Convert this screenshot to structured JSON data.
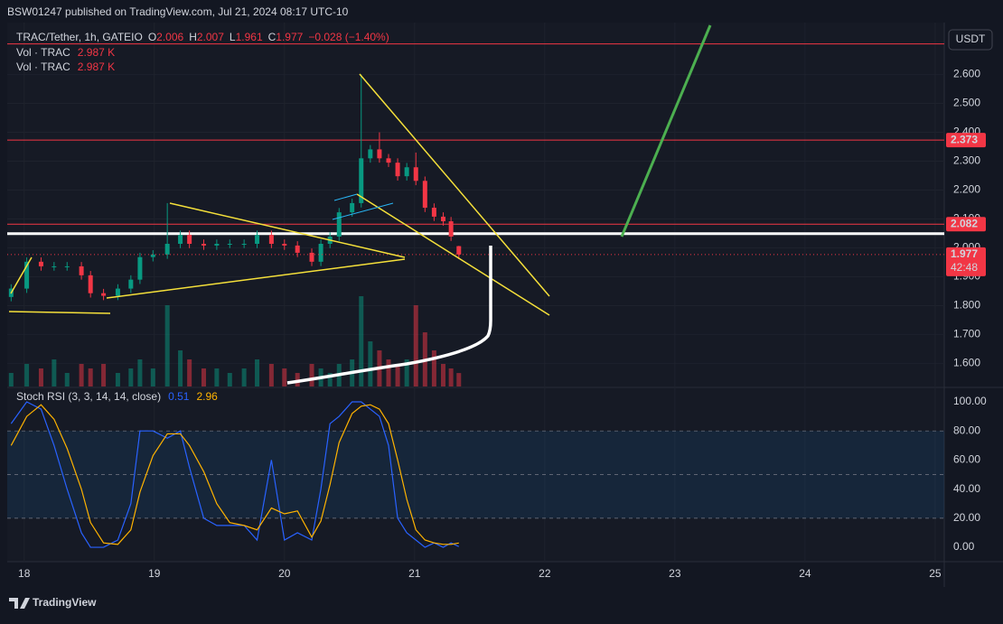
{
  "header": {
    "title": "BSW01247 published on TradingView.com, Jul 21, 2024 08:17 UTC-10"
  },
  "chart_data": [
    {
      "type": "candlestick",
      "symbol": "TRAC/Tether, 1h, GATEIO",
      "ohlc_prefixes": [
        "O",
        "H",
        "L",
        "C"
      ],
      "change": "−0.028 (−1.40%)",
      "volume_labels": [
        "Vol · TRAC",
        "Vol · TRAC"
      ],
      "volume_value_label": "2.987 K",
      "currency": "USDT",
      "countdown": "42:48",
      "x": [
        17.9,
        18.02,
        18.13,
        18.23,
        18.33,
        18.44,
        18.51,
        18.61,
        18.72,
        18.82,
        18.89,
        18.99,
        19.1,
        19.2,
        19.27,
        19.38,
        19.48,
        19.58,
        19.69,
        19.79,
        19.9,
        20.0,
        20.1,
        20.21,
        20.28,
        20.35,
        20.42,
        20.52,
        20.59,
        20.66,
        20.73,
        20.8,
        20.87,
        20.94,
        21.01,
        21.08,
        21.15,
        21.22,
        21.28,
        21.34
      ],
      "open": [
        1.83,
        1.859,
        1.952,
        1.936,
        1.936,
        1.936,
        1.905,
        1.843,
        1.834,
        1.859,
        1.89,
        1.968,
        1.977,
        2.014,
        2.045,
        2.014,
        2.008,
        2.014,
        2.014,
        2.014,
        2.045,
        2.014,
        2.008,
        1.983,
        1.952,
        2.014,
        2.039,
        2.123,
        2.155,
        2.31,
        2.341,
        2.31,
        2.295,
        2.248,
        2.279,
        2.232,
        2.139,
        2.108,
        2.092,
        2.006
      ],
      "high": [
        1.874,
        1.967,
        1.967,
        1.951,
        1.951,
        1.951,
        1.92,
        1.858,
        1.874,
        1.905,
        1.983,
        1.992,
        2.155,
        2.06,
        2.06,
        2.029,
        2.029,
        2.029,
        2.029,
        2.06,
        2.06,
        2.029,
        2.023,
        1.998,
        2.029,
        2.054,
        2.138,
        2.17,
        2.6,
        2.356,
        2.4,
        2.325,
        2.31,
        2.294,
        2.33,
        2.247,
        2.154,
        2.123,
        2.107,
        2.007
      ],
      "low": [
        1.815,
        1.844,
        1.921,
        1.921,
        1.921,
        1.89,
        1.828,
        1.819,
        1.819,
        1.844,
        1.875,
        1.953,
        1.962,
        1.999,
        1.999,
        1.993,
        1.993,
        1.999,
        1.999,
        1.999,
        1.999,
        1.993,
        1.968,
        1.937,
        1.937,
        1.999,
        2.024,
        2.108,
        2.14,
        2.295,
        2.295,
        2.28,
        2.233,
        2.233,
        2.217,
        2.124,
        2.093,
        2.077,
        2.024,
        1.961
      ],
      "close": [
        1.859,
        1.952,
        1.936,
        1.936,
        1.936,
        1.905,
        1.843,
        1.834,
        1.859,
        1.89,
        1.968,
        1.977,
        2.014,
        2.045,
        2.014,
        2.008,
        2.014,
        2.014,
        2.014,
        2.045,
        2.014,
        2.008,
        1.983,
        1.952,
        2.014,
        2.039,
        2.123,
        2.155,
        2.31,
        2.341,
        2.31,
        2.295,
        2.248,
        2.279,
        2.232,
        2.139,
        2.108,
        2.092,
        2.039,
        1.977
      ],
      "volume": [
        3,
        5,
        4,
        6,
        3,
        5,
        4,
        5,
        3,
        4,
        6,
        4,
        18,
        8,
        6,
        4,
        4,
        3,
        4,
        6,
        5,
        4,
        3,
        5,
        4,
        3,
        5,
        6,
        20,
        10,
        8,
        6,
        5,
        6,
        18,
        12,
        8,
        5,
        4,
        2.987
      ],
      "up_color": "#089981",
      "down_color": "#f23645",
      "xlim": [
        17.87,
        25.07
      ],
      "xticks": [
        18,
        19,
        20,
        21,
        22,
        23,
        24,
        25
      ],
      "ylim": [
        1.52,
        2.78
      ],
      "yticks": [
        {
          "value": 2.6,
          "label": "2.600"
        },
        {
          "value": 2.5,
          "label": "2.500"
        },
        {
          "value": 2.4,
          "label": "2.400"
        },
        {
          "value": 2.3,
          "label": "2.300"
        },
        {
          "value": 2.2,
          "label": "2.200"
        },
        {
          "value": 2.1,
          "label": "2.100"
        },
        {
          "value": 2.0,
          "label": "2.000"
        },
        {
          "value": 1.9,
          "label": "1.900"
        },
        {
          "value": 1.8,
          "label": "1.800"
        },
        {
          "value": 1.7,
          "label": "1.700"
        },
        {
          "value": 1.6,
          "label": "1.600"
        }
      ],
      "hlines": [
        {
          "value": 2.706,
          "color": "#f23645"
        },
        {
          "value": 2.373,
          "color": "#f23645"
        },
        {
          "value": 2.082,
          "color": "#f23645"
        },
        {
          "value": 2.049,
          "color": "#ffffff"
        }
      ]
    },
    {
      "type": "line",
      "title": "Stoch RSI (3, 3, 14, 14, close)",
      "series": [
        {
          "color": "#2962ff",
          "values": [
            85,
            100,
            95,
            70,
            40,
            10,
            0,
            0,
            5,
            30,
            80,
            80,
            75,
            80,
            55,
            20,
            15,
            15,
            15,
            5,
            60,
            5,
            10,
            5,
            40,
            85,
            90,
            100,
            100,
            95,
            90,
            70,
            20,
            10,
            5,
            0,
            3,
            0,
            3,
            0.51
          ]
        },
        {
          "color": "#ffb300",
          "values": [
            70,
            90,
            98,
            88,
            68,
            40,
            17,
            3,
            2,
            12,
            38,
            63,
            78,
            78,
            70,
            52,
            30,
            17,
            15,
            12,
            27,
            23,
            25,
            7,
            18,
            43,
            72,
            92,
            97,
            98,
            95,
            85,
            60,
            33,
            12,
            5,
            3,
            2,
            2,
            2.96
          ]
        }
      ],
      "ylim": [
        -9.9,
        109.3
      ],
      "yticks": [
        {
          "value": 100,
          "label": "100.00"
        },
        {
          "value": 80,
          "label": "80.00"
        },
        {
          "value": 60,
          "label": "60.00"
        },
        {
          "value": 40,
          "label": "40.00"
        },
        {
          "value": 20,
          "label": "20.00"
        },
        {
          "value": 0,
          "label": "0.00"
        }
      ],
      "levels": [
        20,
        50,
        80
      ]
    }
  ],
  "footer": {
    "brand": "TradingView"
  }
}
